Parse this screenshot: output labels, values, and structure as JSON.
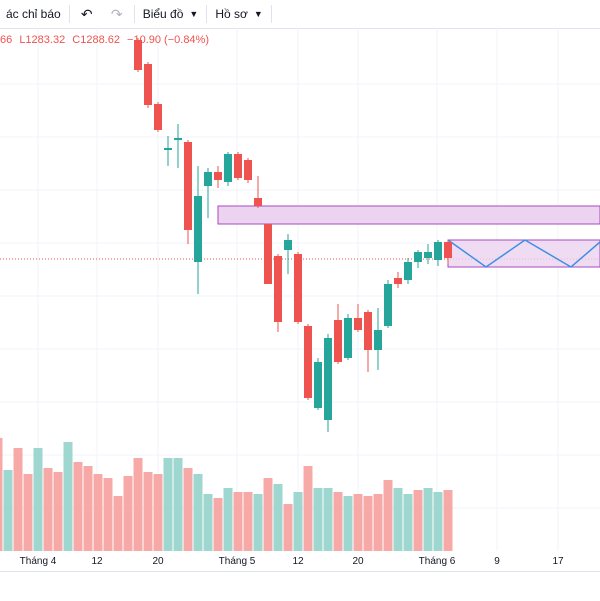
{
  "toolbar": {
    "indicators_label": "ác chỉ báo",
    "undo_icon": "undo-icon",
    "redo_icon": "redo-icon",
    "chart_type_label": "Biểu đồ",
    "profile_label": "Hồ sơ"
  },
  "legend": {
    "open_fragment": "66",
    "low": "L1283.32",
    "close": "C1288.62",
    "change": "−10.90 (−0.84%)"
  },
  "colors": {
    "up": "#26a69a",
    "down": "#ef5350",
    "up_volume": "#9ed7d0",
    "down_volume": "#f7a9a7",
    "zone_fill": "#ecd3ef",
    "zone_border": "#a64bc2",
    "projection": "#3d8fe8"
  },
  "xaxis": {
    "labels": [
      "Tháng 4",
      "12",
      "20",
      "Tháng 5",
      "12",
      "20",
      "Tháng 6",
      "9",
      "17"
    ]
  }
}
